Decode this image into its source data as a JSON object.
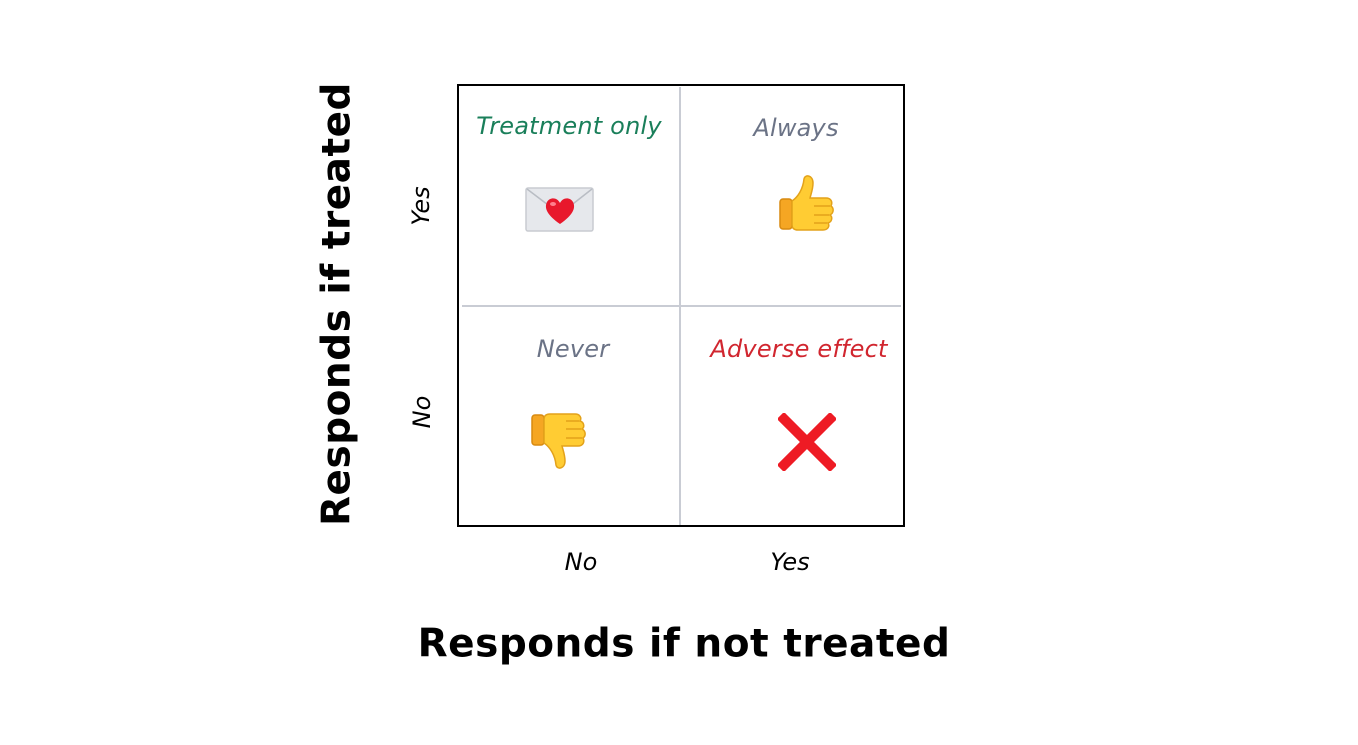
{
  "axes": {
    "x_label": "Responds if not treated",
    "y_label": "Responds if treated",
    "x_ticks": [
      "No",
      "Yes"
    ],
    "y_ticks": [
      "Yes",
      "No"
    ]
  },
  "quadrants": {
    "top_left": {
      "title": "Treatment only",
      "color": "#1a7f5a",
      "icon": "love-letter-icon"
    },
    "top_right": {
      "title": "Always",
      "color": "#6b7386",
      "icon": "thumbs-up-icon"
    },
    "bottom_left": {
      "title": "Never",
      "color": "#6b7386",
      "icon": "thumbs-down-icon"
    },
    "bottom_right": {
      "title": "Adverse effect",
      "color": "#d1262f",
      "icon": "cross-mark-icon"
    }
  }
}
